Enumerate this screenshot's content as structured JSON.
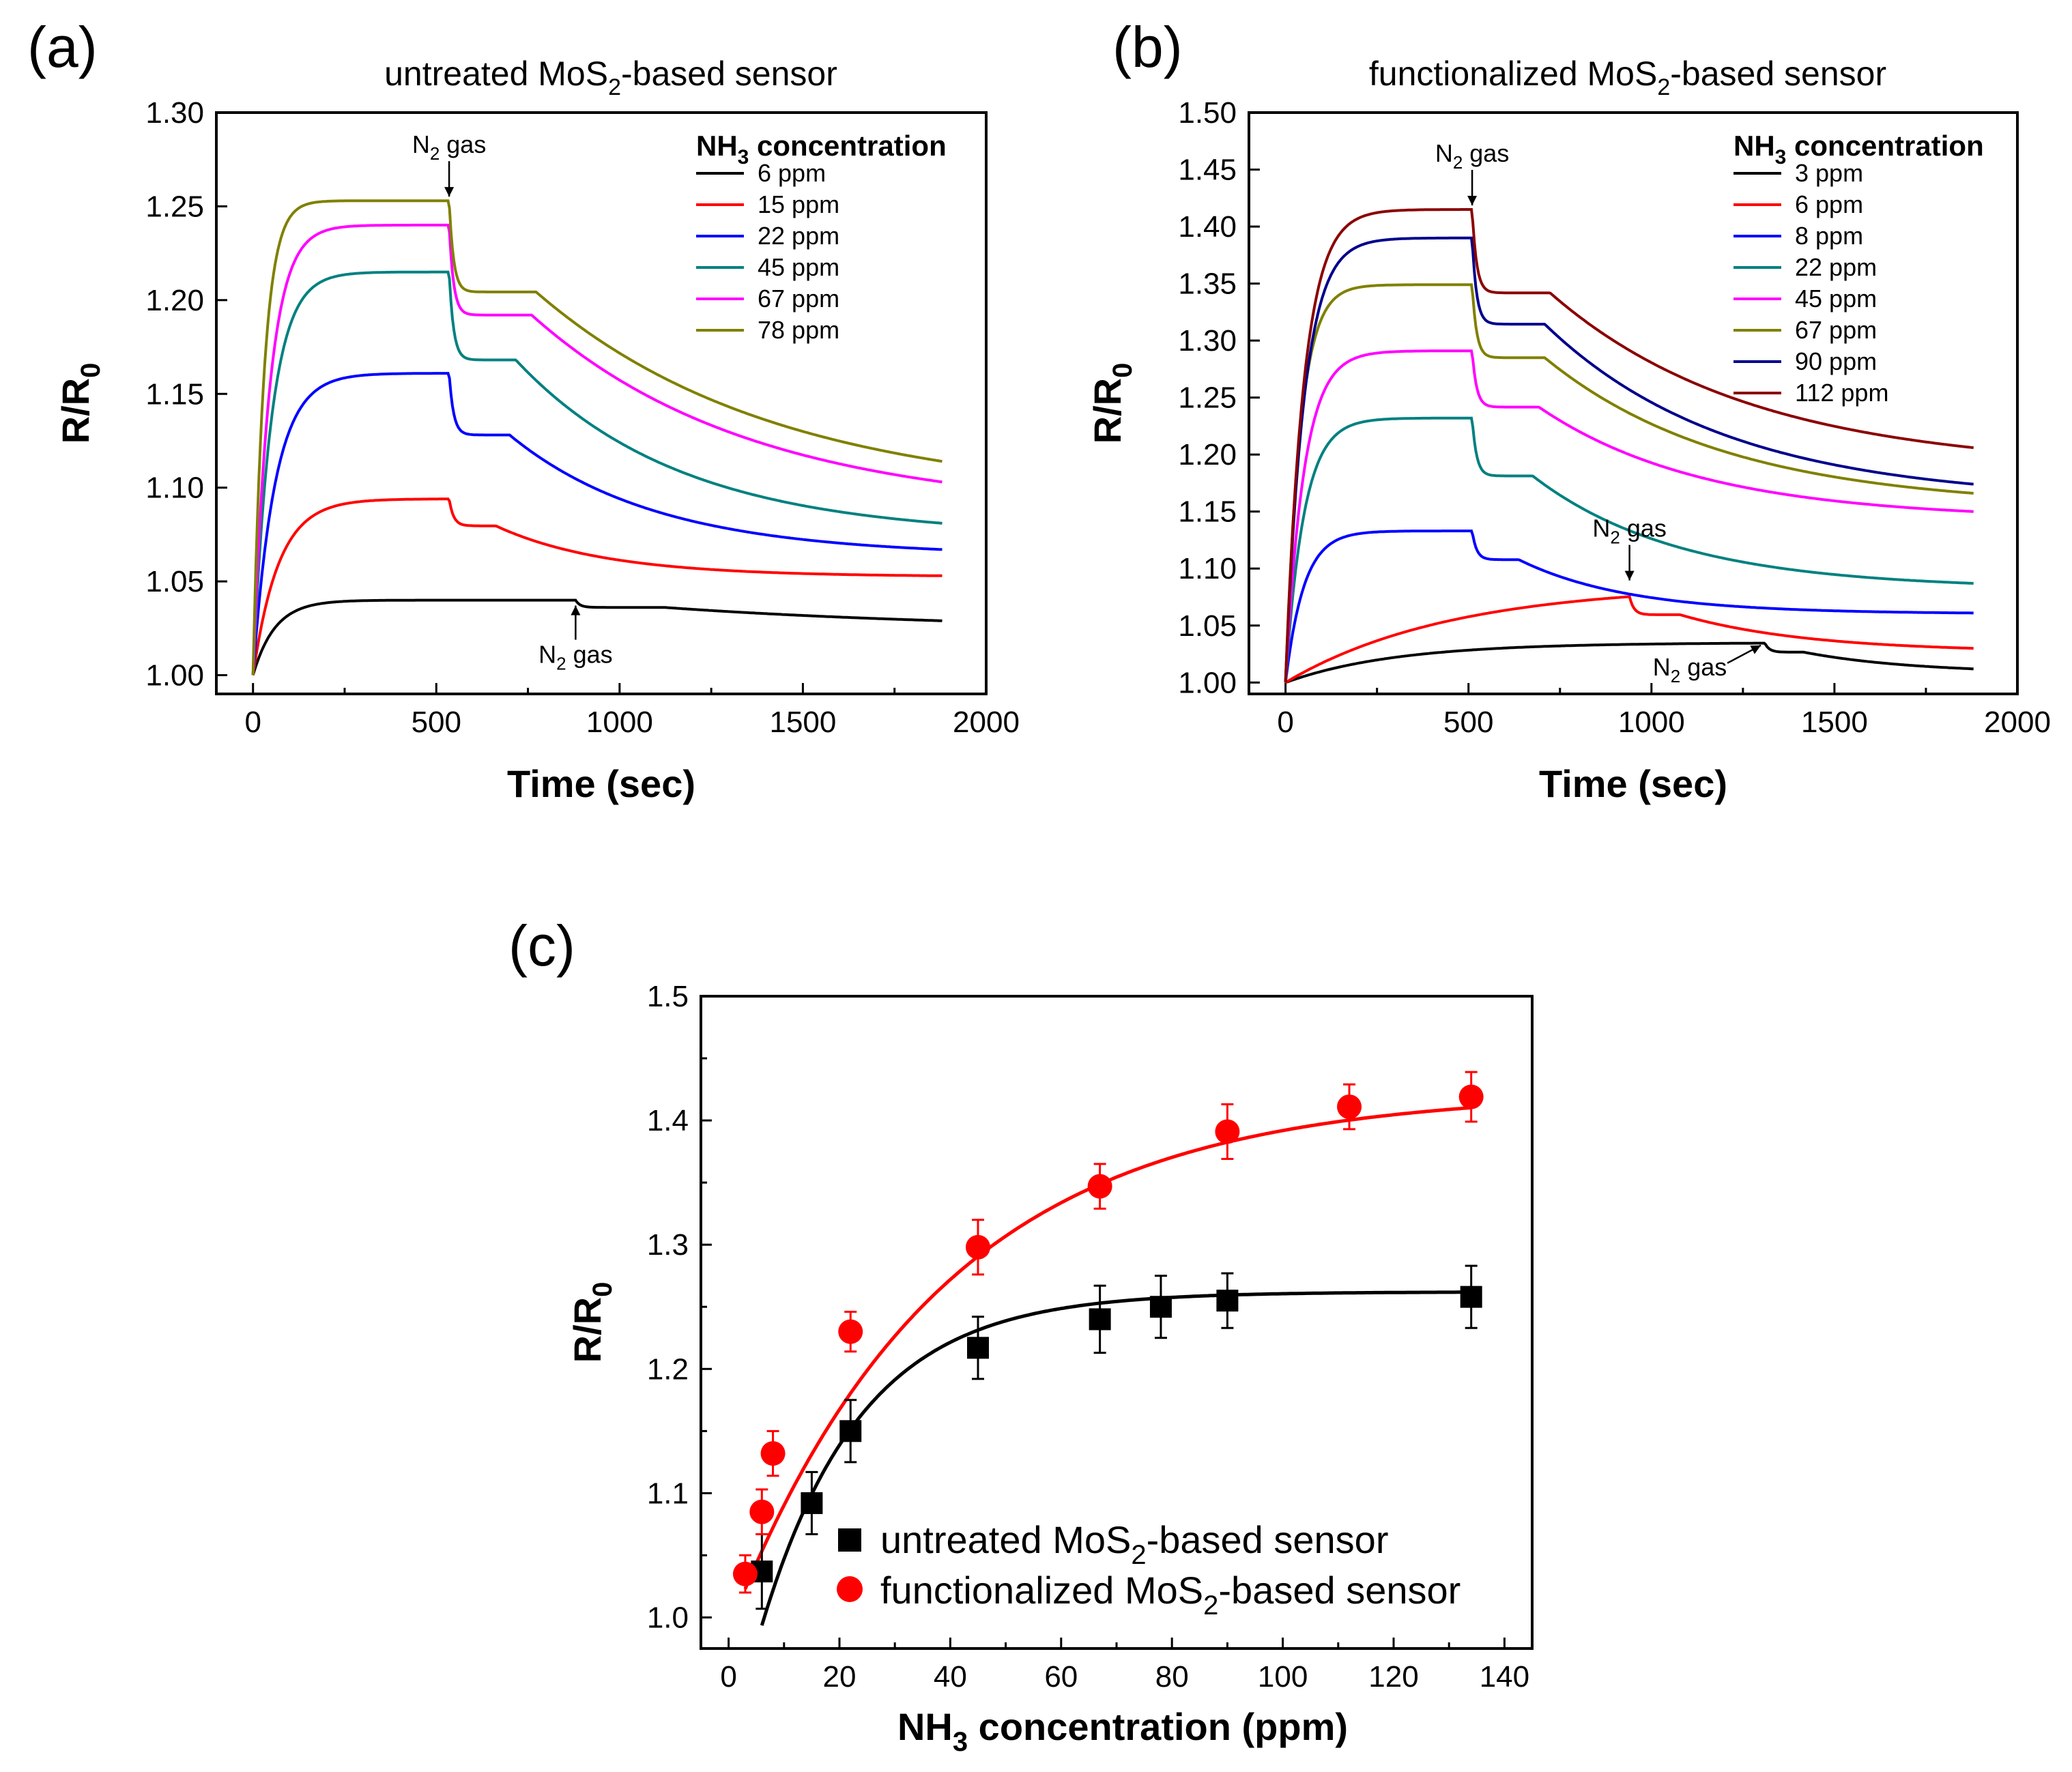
{
  "chart_data": [
    {
      "panel": "(a)",
      "type": "line",
      "title_prefix": "untreated MoS",
      "title_sub": "2",
      "title_suffix": "-based sensor",
      "xlabel": "Time (sec)",
      "ylabel_main": "R/R",
      "ylabel_sub": "0",
      "xlim": [
        -100,
        2000
      ],
      "ylim": [
        0.99,
        1.3
      ],
      "xticks": [
        0,
        500,
        1000,
        1500,
        2000
      ],
      "yticks": [
        1.0,
        1.05,
        1.1,
        1.15,
        1.2,
        1.25,
        1.3
      ],
      "ytick_labels": [
        "1.00",
        "1.05",
        "1.10",
        "1.15",
        "1.20",
        "1.25",
        "1.30"
      ],
      "legend_title_prefix": "NH",
      "legend_title_sub": "3",
      "legend_title_suffix": " concentration",
      "gas_on": 0,
      "gas_off": [
        880,
        535,
        535,
        535,
        535,
        535
      ],
      "t_end": 1880,
      "series": [
        {
          "name": "6 ppm",
          "color": "#000000",
          "plateau": 1.04,
          "final": 1.029,
          "rise": 60,
          "decay": 900
        },
        {
          "name": "15 ppm",
          "color": "#ff0000",
          "plateau": 1.094,
          "final": 1.053,
          "rise": 70,
          "decay": 300
        },
        {
          "name": "22 ppm",
          "color": "#0000ff",
          "plateau": 1.161,
          "final": 1.067,
          "rise": 60,
          "decay": 400
        },
        {
          "name": "45 ppm",
          "color": "#008080",
          "plateau": 1.215,
          "final": 1.081,
          "rise": 50,
          "decay": 450
        },
        {
          "name": "67 ppm",
          "color": "#ff00ff",
          "plateau": 1.24,
          "final": 1.103,
          "rise": 45,
          "decay": 600
        },
        {
          "name": "78 ppm",
          "color": "#808000",
          "plateau": 1.253,
          "final": 1.114,
          "rise": 30,
          "decay": 650
        }
      ],
      "annotations": [
        {
          "text_main": "N",
          "text_sub": "2",
          "text_suffix": " gas",
          "x": 535,
          "y": 1.253,
          "dir": "down"
        },
        {
          "text_main": "N",
          "text_sub": "2",
          "text_suffix": " gas",
          "x": 880,
          "y": 1.04,
          "dir": "up"
        }
      ]
    },
    {
      "panel": "(b)",
      "type": "line",
      "title_prefix": "functionalized MoS",
      "title_sub": "2",
      "title_suffix": "-based sensor",
      "xlabel": "Time (sec)",
      "ylabel_main": "R/R",
      "ylabel_sub": "0",
      "xlim": [
        -100,
        2000
      ],
      "ylim": [
        0.99,
        1.5
      ],
      "xticks": [
        0,
        500,
        1000,
        1500,
        2000
      ],
      "yticks": [
        1.0,
        1.05,
        1.1,
        1.15,
        1.2,
        1.25,
        1.3,
        1.35,
        1.4,
        1.45,
        1.5
      ],
      "ytick_labels": [
        "1.00",
        "1.05",
        "1.10",
        "1.15",
        "1.20",
        "1.25",
        "1.30",
        "1.35",
        "1.40",
        "1.45",
        "1.50"
      ],
      "legend_title_prefix": "NH",
      "legend_title_sub": "3",
      "legend_title_suffix": " concentration",
      "gas_on": 0,
      "gas_off": [
        1310,
        940,
        510,
        510,
        510,
        510,
        510,
        510
      ],
      "t_end": 1880,
      "series": [
        {
          "name": "3 ppm",
          "color": "#000000",
          "plateau": 1.035,
          "final": 1.012,
          "rise": 300,
          "decay": 300
        },
        {
          "name": "6 ppm",
          "color": "#ff0000",
          "plateau": 1.086,
          "final": 1.03,
          "rise": 450,
          "decay": 350
        },
        {
          "name": "8 ppm",
          "color": "#0000ff",
          "plateau": 1.133,
          "final": 1.061,
          "rise": 50,
          "decay": 300
        },
        {
          "name": "22 ppm",
          "color": "#008080",
          "plateau": 1.232,
          "final": 1.087,
          "rise": 50,
          "decay": 400
        },
        {
          "name": "45 ppm",
          "color": "#ff00ff",
          "plateau": 1.291,
          "final": 1.15,
          "rise": 50,
          "decay": 450
        },
        {
          "name": "67 ppm",
          "color": "#808000",
          "plateau": 1.349,
          "final": 1.166,
          "rise": 40,
          "decay": 500
        },
        {
          "name": "90 ppm",
          "color": "#00008b",
          "plateau": 1.39,
          "final": 1.174,
          "rise": 50,
          "decay": 500
        },
        {
          "name": "112 ppm",
          "color": "#8b0000",
          "plateau": 1.415,
          "final": 1.206,
          "rise": 50,
          "decay": 550
        }
      ],
      "annotations": [
        {
          "text_main": "N",
          "text_sub": "2",
          "text_suffix": " gas",
          "x": 510,
          "y": 1.415,
          "dir": "down"
        },
        {
          "text_main": "N",
          "text_sub": "2",
          "text_suffix": " gas",
          "x": 940,
          "y": 1.086,
          "dir": "down"
        },
        {
          "text_main": "N",
          "text_sub": "2",
          "text_suffix": " gas",
          "x": 1310,
          "y": 1.035,
          "dir": "left"
        }
      ]
    },
    {
      "panel": "(c)",
      "type": "scatter",
      "xlabel_prefix": "NH",
      "xlabel_sub": "3",
      "xlabel_suffix": " concentration (ppm)",
      "ylabel_main": "R/R",
      "ylabel_sub": "0",
      "xlim": [
        -5,
        145
      ],
      "ylim": [
        0.975,
        1.5
      ],
      "xticks": [
        0,
        20,
        40,
        60,
        80,
        100,
        120,
        140
      ],
      "yticks": [
        1.0,
        1.1,
        1.2,
        1.3,
        1.4,
        1.5
      ],
      "ytick_labels": [
        "1.0",
        "1.1",
        "1.2",
        "1.3",
        "1.4",
        "1.5"
      ],
      "series": [
        {
          "name_prefix": "untreated MoS",
          "name_sub": "2",
          "name_suffix": "-based sensor",
          "marker": "square",
          "color": "#000000",
          "x": [
            6,
            15,
            22,
            45,
            67,
            78,
            90,
            134
          ],
          "y": [
            1.037,
            1.092,
            1.15,
            1.217,
            1.24,
            1.25,
            1.255,
            1.258
          ],
          "err": [
            0.03,
            0.025,
            0.025,
            0.025,
            0.027,
            0.025,
            0.022,
            0.025
          ],
          "fit": {
            "y0": 1.262,
            "A": 0.3,
            "t": 18,
            "x0": 4
          }
        },
        {
          "name_prefix": "functionalized MoS",
          "name_sub": "2",
          "name_suffix": "-based sensor",
          "marker": "circle",
          "color": "#ff0000",
          "x": [
            3,
            6,
            8,
            22,
            45,
            67,
            90,
            112,
            134
          ],
          "y": [
            1.035,
            1.085,
            1.132,
            1.23,
            1.298,
            1.347,
            1.391,
            1.411,
            1.419
          ],
          "err": [
            0.015,
            0.018,
            0.018,
            0.016,
            0.022,
            0.018,
            0.022,
            0.018,
            0.02
          ],
          "fit": {
            "y0": 1.423,
            "A": 0.4,
            "t": 38,
            "x0": 3
          }
        }
      ]
    }
  ]
}
